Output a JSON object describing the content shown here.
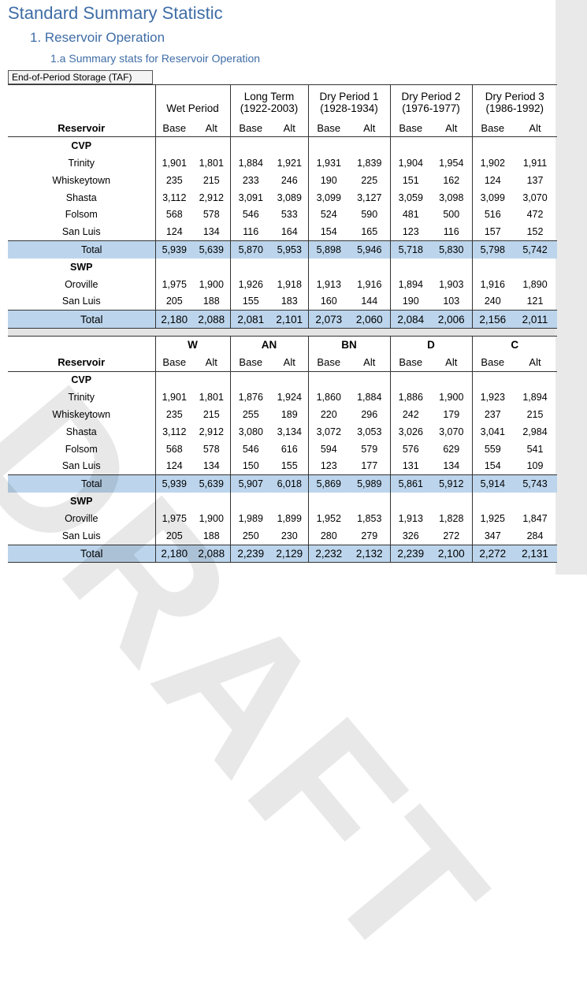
{
  "headings": {
    "title": "Standard Summary Statistic",
    "section": "1.  Reservoir Operation",
    "subsection": "1.a Summary stats for Reservoir Operation"
  },
  "caption": "End-of-Period Storage (TAF)",
  "watermark": "DRAFT",
  "labels": {
    "reservoir": "Reservoir",
    "base": "Base",
    "alt": "Alt",
    "cvp": "CVP",
    "swp": "SWP",
    "total": "Total"
  },
  "table1": {
    "period_line1": [
      "",
      "Long Term",
      "Dry Period 1",
      "Dry Period 2",
      "Dry Period 3"
    ],
    "period_line2": [
      "Wet Period",
      "(1922-2003)",
      "(1928-1934)",
      "(1976-1977)",
      "(1986-1992)"
    ],
    "cvp": [
      {
        "name": "Trinity",
        "values": [
          "1,901",
          "1,801",
          "1,884",
          "1,921",
          "1,931",
          "1,839",
          "1,904",
          "1,954",
          "1,902",
          "1,911"
        ]
      },
      {
        "name": "Whiskeytown",
        "values": [
          "235",
          "215",
          "233",
          "246",
          "190",
          "225",
          "151",
          "162",
          "124",
          "137"
        ]
      },
      {
        "name": "Shasta",
        "values": [
          "3,112",
          "2,912",
          "3,091",
          "3,089",
          "3,099",
          "3,127",
          "3,059",
          "3,098",
          "3,099",
          "3,070"
        ]
      },
      {
        "name": "Folsom",
        "values": [
          "568",
          "578",
          "546",
          "533",
          "524",
          "590",
          "481",
          "500",
          "516",
          "472"
        ]
      },
      {
        "name": "San Luis",
        "values": [
          "124",
          "134",
          "116",
          "164",
          "154",
          "165",
          "123",
          "116",
          "157",
          "152"
        ]
      }
    ],
    "cvp_total": [
      "5,939",
      "5,639",
      "5,870",
      "5,953",
      "5,898",
      "5,946",
      "5,718",
      "5,830",
      "5,798",
      "5,742"
    ],
    "swp": [
      {
        "name": "Oroville",
        "values": [
          "1,975",
          "1,900",
          "1,926",
          "1,918",
          "1,913",
          "1,916",
          "1,894",
          "1,903",
          "1,916",
          "1,890"
        ]
      },
      {
        "name": "San Luis",
        "values": [
          "205",
          "188",
          "155",
          "183",
          "160",
          "144",
          "190",
          "103",
          "240",
          "121"
        ]
      }
    ],
    "swp_total": [
      "2,180",
      "2,088",
      "2,081",
      "2,101",
      "2,073",
      "2,060",
      "2,084",
      "2,006",
      "2,156",
      "2,011"
    ]
  },
  "table2": {
    "year_types": [
      "W",
      "AN",
      "BN",
      "D",
      "C"
    ],
    "cvp": [
      {
        "name": "Trinity",
        "values": [
          "1,901",
          "1,801",
          "1,876",
          "1,924",
          "1,860",
          "1,884",
          "1,886",
          "1,900",
          "1,923",
          "1,894"
        ]
      },
      {
        "name": "Whiskeytown",
        "values": [
          "235",
          "215",
          "255",
          "189",
          "220",
          "296",
          "242",
          "179",
          "237",
          "215"
        ]
      },
      {
        "name": "Shasta",
        "values": [
          "3,112",
          "2,912",
          "3,080",
          "3,134",
          "3,072",
          "3,053",
          "3,026",
          "3,070",
          "3,041",
          "2,984"
        ]
      },
      {
        "name": "Folsom",
        "values": [
          "568",
          "578",
          "546",
          "616",
          "594",
          "579",
          "576",
          "629",
          "559",
          "541"
        ]
      },
      {
        "name": "San Luis",
        "values": [
          "124",
          "134",
          "150",
          "155",
          "123",
          "177",
          "131",
          "134",
          "154",
          "109"
        ]
      }
    ],
    "cvp_total": [
      "5,939",
      "5,639",
      "5,907",
      "6,018",
      "5,869",
      "5,989",
      "5,861",
      "5,912",
      "5,914",
      "5,743"
    ],
    "swp": [
      {
        "name": "Oroville",
        "values": [
          "1,975",
          "1,900",
          "1,989",
          "1,899",
          "1,952",
          "1,853",
          "1,913",
          "1,828",
          "1,925",
          "1,847"
        ]
      },
      {
        "name": "San Luis",
        "values": [
          "205",
          "188",
          "250",
          "230",
          "280",
          "279",
          "326",
          "272",
          "347",
          "284"
        ]
      }
    ],
    "swp_total": [
      "2,180",
      "2,088",
      "2,239",
      "2,129",
      "2,232",
      "2,132",
      "2,239",
      "2,100",
      "2,272",
      "2,131"
    ]
  }
}
